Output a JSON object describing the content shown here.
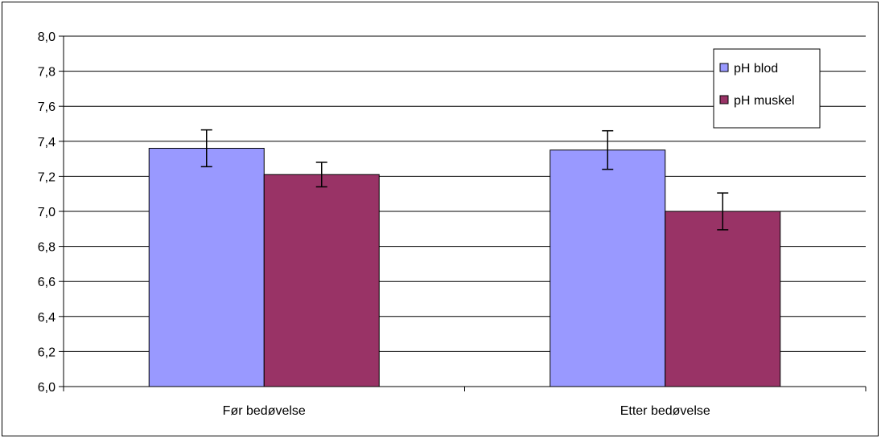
{
  "chart_data": {
    "type": "bar",
    "title": "",
    "xlabel": "",
    "ylabel": "",
    "categories": [
      "Før bedøvelse",
      "Etter bedøvelse"
    ],
    "series": [
      {
        "name": "pH blod",
        "color": "#9999FF",
        "values": [
          7.36,
          7.35
        ],
        "error": [
          0.105,
          0.11
        ]
      },
      {
        "name": "pH muskel",
        "color": "#993366",
        "values": [
          7.21,
          7.0
        ],
        "error": [
          0.07,
          0.105
        ]
      }
    ],
    "ylim": [
      6.0,
      8.0
    ],
    "yticks": [
      "6,0",
      "6,2",
      "6,4",
      "6,6",
      "6,8",
      "7,0",
      "7,2",
      "7,4",
      "7,6",
      "7,8",
      "8,0"
    ],
    "grid": true,
    "legend_position": "top-right"
  }
}
